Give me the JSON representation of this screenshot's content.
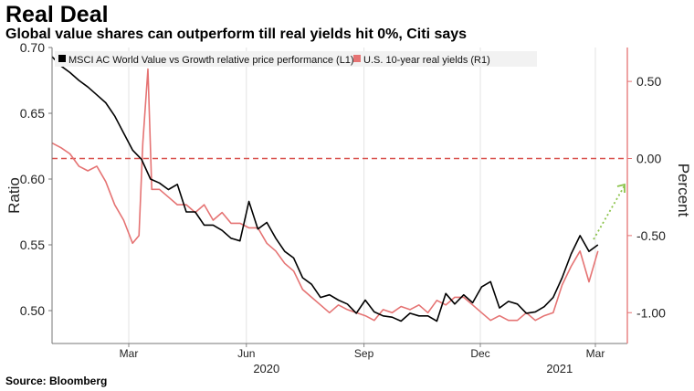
{
  "header": {
    "title": "Real Deal",
    "subtitle": "Global value shares can outperform till real yields hit 0%, Citi says"
  },
  "footer": {
    "source": "Source: Bloomberg"
  },
  "chart_data": {
    "type": "line",
    "title": "Real Deal",
    "subtitle": "Global value shares can outperform till real yields hit 0%, Citi says",
    "y_left_label": "Ratio",
    "y_right_label": "Percent",
    "y_left_ticks": [
      "0.70",
      "0.65",
      "0.60",
      "0.55",
      "0.50"
    ],
    "y_right_ticks": [
      "0.50",
      "0.00",
      "-0.50",
      "-1.00"
    ],
    "y_left_range": [
      0.475,
      0.7
    ],
    "y_right_range": [
      -1.2,
      0.72
    ],
    "x_ticks": [
      "Mar",
      "Jun",
      "Sep",
      "Dec",
      "Mar"
    ],
    "x_years": [
      "2020",
      "2021"
    ],
    "reference_line": {
      "axis": "right",
      "value": 0.0,
      "style": "dashed",
      "color": "#d9534f"
    },
    "annotation": {
      "type": "arrow",
      "style": "dotted",
      "color": "#8bc34a",
      "direction": "up-right"
    },
    "grid": "vertical",
    "legend": "top-left",
    "colors": {
      "value_vs_growth": "#000000",
      "real_yields": "#e57373",
      "right_axis": "#e57373"
    },
    "series": [
      {
        "name": "MSCI AC World Value vs Growth relative price performance (L1)",
        "axis": "left",
        "x": [
          "2020-01-01",
          "2020-01-08",
          "2020-01-15",
          "2020-01-22",
          "2020-01-29",
          "2020-02-05",
          "2020-02-12",
          "2020-02-19",
          "2020-02-26",
          "2020-03-04",
          "2020-03-11",
          "2020-03-18",
          "2020-03-25",
          "2020-04-01",
          "2020-04-08",
          "2020-04-15",
          "2020-04-22",
          "2020-04-29",
          "2020-05-06",
          "2020-05-13",
          "2020-05-20",
          "2020-05-27",
          "2020-06-03",
          "2020-06-10",
          "2020-06-17",
          "2020-06-24",
          "2020-07-01",
          "2020-07-08",
          "2020-07-15",
          "2020-07-22",
          "2020-07-29",
          "2020-08-05",
          "2020-08-12",
          "2020-08-19",
          "2020-08-26",
          "2020-09-02",
          "2020-09-09",
          "2020-09-16",
          "2020-09-23",
          "2020-09-30",
          "2020-10-07",
          "2020-10-14",
          "2020-10-21",
          "2020-10-28",
          "2020-11-04",
          "2020-11-11",
          "2020-11-18",
          "2020-11-25",
          "2020-12-02",
          "2020-12-09",
          "2020-12-16",
          "2020-12-23",
          "2020-12-30",
          "2021-01-06",
          "2021-01-13",
          "2021-01-20",
          "2021-01-27",
          "2021-02-03",
          "2021-02-10",
          "2021-02-17",
          "2021-02-24",
          "2021-03-03"
        ],
        "values": [
          0.693,
          0.686,
          0.681,
          0.675,
          0.67,
          0.664,
          0.658,
          0.648,
          0.635,
          0.622,
          0.615,
          0.6,
          0.597,
          0.592,
          0.596,
          0.575,
          0.575,
          0.565,
          0.565,
          0.561,
          0.555,
          0.553,
          0.583,
          0.562,
          0.567,
          0.555,
          0.545,
          0.54,
          0.525,
          0.52,
          0.51,
          0.512,
          0.508,
          0.505,
          0.498,
          0.508,
          0.499,
          0.496,
          0.495,
          0.492,
          0.498,
          0.496,
          0.496,
          0.492,
          0.513,
          0.505,
          0.512,
          0.506,
          0.518,
          0.522,
          0.502,
          0.507,
          0.505,
          0.498,
          0.499,
          0.503,
          0.51,
          0.525,
          0.543,
          0.557,
          0.545,
          0.55
        ]
      },
      {
        "name": "U.S. 10-year real yields (R1)",
        "axis": "right",
        "x": [
          "2020-01-01",
          "2020-01-08",
          "2020-01-15",
          "2020-01-22",
          "2020-01-29",
          "2020-02-05",
          "2020-02-12",
          "2020-02-19",
          "2020-02-26",
          "2020-03-04",
          "2020-03-09",
          "2020-03-12",
          "2020-03-16",
          "2020-03-19",
          "2020-03-25",
          "2020-04-01",
          "2020-04-08",
          "2020-04-15",
          "2020-04-22",
          "2020-04-29",
          "2020-05-06",
          "2020-05-13",
          "2020-05-20",
          "2020-05-27",
          "2020-06-03",
          "2020-06-10",
          "2020-06-17",
          "2020-06-24",
          "2020-07-01",
          "2020-07-08",
          "2020-07-15",
          "2020-07-22",
          "2020-07-29",
          "2020-08-05",
          "2020-08-12",
          "2020-08-19",
          "2020-08-26",
          "2020-09-02",
          "2020-09-09",
          "2020-09-16",
          "2020-09-23",
          "2020-09-30",
          "2020-10-07",
          "2020-10-14",
          "2020-10-21",
          "2020-10-28",
          "2020-11-04",
          "2020-11-11",
          "2020-11-18",
          "2020-11-25",
          "2020-12-02",
          "2020-12-09",
          "2020-12-16",
          "2020-12-23",
          "2020-12-30",
          "2021-01-06",
          "2021-01-13",
          "2021-01-20",
          "2021-01-27",
          "2021-02-03",
          "2021-02-10",
          "2021-02-17",
          "2021-02-24",
          "2021-03-03"
        ],
        "values": [
          0.1,
          0.07,
          0.03,
          -0.05,
          -0.08,
          -0.05,
          -0.15,
          -0.3,
          -0.4,
          -0.55,
          -0.5,
          0.1,
          0.58,
          -0.2,
          -0.2,
          -0.25,
          -0.3,
          -0.3,
          -0.35,
          -0.3,
          -0.4,
          -0.35,
          -0.42,
          -0.42,
          -0.45,
          -0.45,
          -0.55,
          -0.6,
          -0.68,
          -0.73,
          -0.85,
          -0.9,
          -0.95,
          -1.0,
          -0.95,
          -0.98,
          -1.0,
          -1.02,
          -1.05,
          -0.98,
          -1.0,
          -0.96,
          -0.98,
          -0.95,
          -1.0,
          -0.92,
          -0.95,
          -0.9,
          -0.9,
          -0.95,
          -1.0,
          -1.05,
          -1.02,
          -1.05,
          -1.05,
          -1.0,
          -1.05,
          -1.02,
          -1.0,
          -0.82,
          -0.7,
          -0.6,
          -0.8,
          -0.6
        ]
      }
    ]
  }
}
